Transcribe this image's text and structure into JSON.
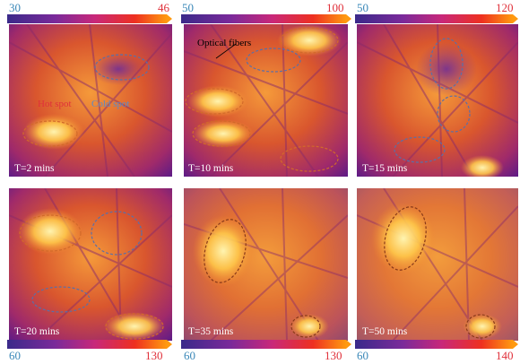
{
  "colors": {
    "cold_label": "#3a88b8",
    "hot_label": "#e0303a",
    "hot_spot_outline": "#d26a2a",
    "cold_spot_outline": "#5a6fa8"
  },
  "colorbars": [
    {
      "min": "30",
      "max": "46"
    },
    {
      "min": "50",
      "max": "100"
    },
    {
      "min": "50",
      "max": "120"
    },
    {
      "min": "60",
      "max": "130"
    },
    {
      "min": "60",
      "max": "130"
    },
    {
      "min": "60",
      "max": "140"
    }
  ],
  "panels": [
    {
      "time_label": "T=2 mins"
    },
    {
      "time_label": "T=10 mins"
    },
    {
      "time_label": "T=15 mins"
    },
    {
      "time_label": "T=20 mins"
    },
    {
      "time_label": "T=35 mins"
    },
    {
      "time_label": "T=50 mins"
    }
  ],
  "annotations": {
    "hot_spot": "Hot spot",
    "cold_spot": "Cold spot",
    "optical_fibers": "Optical fibers"
  }
}
